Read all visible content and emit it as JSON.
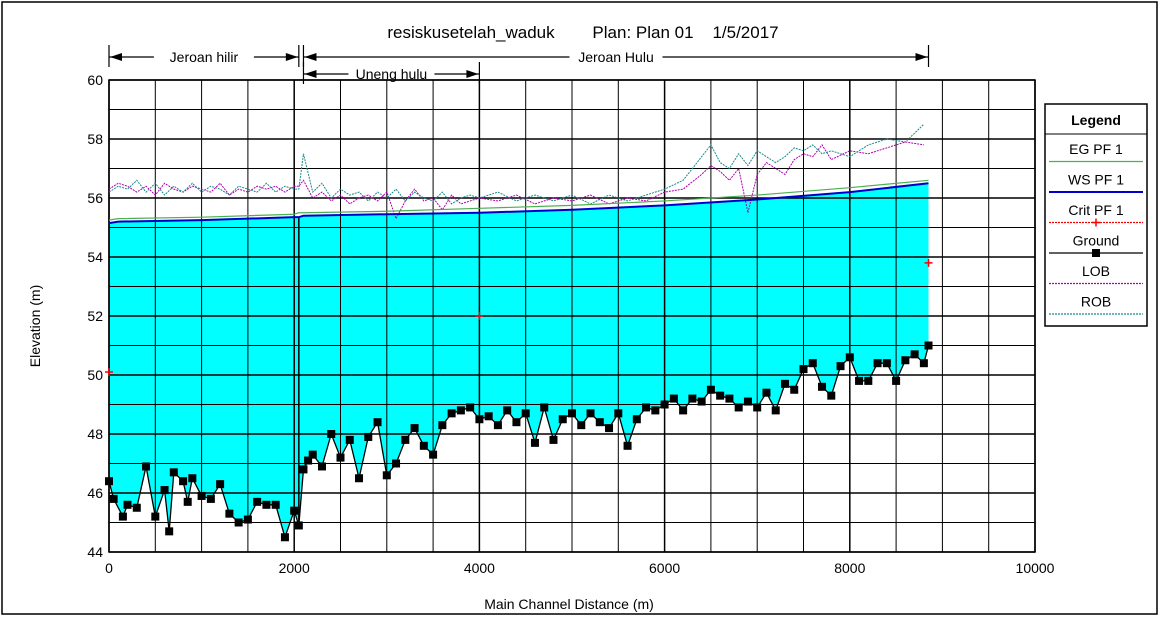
{
  "chart_data": {
    "type": "line",
    "title": "resiskusetelah_waduk        Plan: Plan 01    1/5/2017",
    "xlabel": "Main Channel Distance (m)",
    "ylabel": "Elevation (m)",
    "xlim": [
      0,
      10000
    ],
    "ylim": [
      44,
      60
    ],
    "x_ticks": [
      "0",
      "2000",
      "4000",
      "6000",
      "8000",
      "10000"
    ],
    "y_ticks": [
      "44",
      "46",
      "48",
      "50",
      "52",
      "54",
      "56",
      "58",
      "60"
    ],
    "grid": true,
    "legend_position": "right",
    "legend_title": "Legend",
    "reaches": [
      {
        "label": "Jeroan hilir",
        "from": 0,
        "to": 2050
      },
      {
        "label": "Uneng hulu",
        "from": 2100,
        "to": 4000
      },
      {
        "label": "Jeroan Hulu",
        "from": 2100,
        "to": 8850
      }
    ],
    "series": [
      {
        "name": "EG PF 1",
        "color": "#4caf50",
        "style": "solid",
        "x": [
          0,
          100,
          1000,
          2000,
          2050,
          2100,
          3000,
          4000,
          5000,
          6000,
          7000,
          8000,
          8850
        ],
        "values": [
          55.25,
          55.3,
          55.35,
          55.45,
          55.5,
          55.5,
          55.55,
          55.65,
          55.75,
          55.9,
          56.1,
          56.35,
          56.6
        ]
      },
      {
        "name": "WS PF 1",
        "color": "#0000cc",
        "style": "solid",
        "x": [
          0,
          100,
          1000,
          2000,
          2050,
          2100,
          3000,
          4000,
          5000,
          6000,
          7000,
          8000,
          8850
        ],
        "values": [
          55.15,
          55.2,
          55.25,
          55.35,
          55.35,
          55.4,
          55.45,
          55.5,
          55.6,
          55.75,
          55.95,
          56.2,
          56.5
        ]
      },
      {
        "name": "Crit PF 1",
        "color": "#ff0000",
        "style": "marker-plus",
        "x": [
          0,
          4000,
          8850
        ],
        "values": [
          50.1,
          52.0,
          53.8
        ]
      },
      {
        "name": "Ground",
        "color": "#000000",
        "style": "solid-square",
        "x": [
          0,
          50,
          150,
          200,
          300,
          400,
          500,
          600,
          650,
          700,
          800,
          850,
          900,
          1000,
          1100,
          1200,
          1300,
          1400,
          1500,
          1600,
          1700,
          1800,
          1900,
          2000,
          2050,
          2100,
          2150,
          2200,
          2300,
          2400,
          2500,
          2600,
          2700,
          2800,
          2900,
          3000,
          3100,
          3200,
          3300,
          3400,
          3500,
          3600,
          3700,
          3800,
          3900,
          4000,
          4100,
          4200,
          4300,
          4400,
          4500,
          4600,
          4700,
          4800,
          4900,
          5000,
          5100,
          5200,
          5300,
          5400,
          5500,
          5600,
          5700,
          5800,
          5900,
          6000,
          6100,
          6200,
          6300,
          6400,
          6500,
          6600,
          6700,
          6800,
          6900,
          7000,
          7100,
          7200,
          7300,
          7400,
          7500,
          7600,
          7700,
          7800,
          7900,
          8000,
          8100,
          8200,
          8300,
          8400,
          8500,
          8600,
          8700,
          8800,
          8850
        ],
        "values": [
          46.4,
          45.8,
          45.2,
          45.6,
          45.5,
          46.9,
          45.2,
          46.1,
          44.7,
          46.7,
          46.4,
          45.7,
          46.5,
          45.9,
          45.8,
          46.3,
          45.3,
          45.0,
          45.1,
          45.7,
          45.6,
          45.6,
          44.5,
          45.4,
          44.9,
          46.8,
          47.1,
          47.3,
          46.9,
          48.0,
          47.2,
          47.8,
          46.5,
          47.9,
          48.4,
          46.6,
          47.0,
          47.8,
          48.2,
          47.6,
          47.3,
          48.3,
          48.7,
          48.8,
          48.9,
          48.5,
          48.6,
          48.3,
          48.8,
          48.4,
          48.7,
          47.7,
          48.9,
          47.8,
          48.5,
          48.7,
          48.3,
          48.7,
          48.4,
          48.2,
          48.7,
          47.6,
          48.5,
          48.9,
          48.8,
          49.0,
          49.2,
          48.8,
          49.2,
          49.1,
          49.5,
          49.3,
          49.2,
          48.9,
          49.1,
          48.9,
          49.4,
          48.8,
          49.7,
          49.5,
          50.2,
          50.4,
          49.6,
          49.3,
          50.3,
          50.6,
          49.8,
          49.8,
          50.4,
          50.4,
          49.8,
          50.5,
          50.7,
          50.4,
          51.0
        ]
      },
      {
        "name": "LOB",
        "color": "#b000b0",
        "style": "dotted",
        "x": [
          0,
          100,
          200,
          300,
          400,
          500,
          600,
          700,
          800,
          900,
          1000,
          1100,
          1200,
          1300,
          1400,
          1500,
          1600,
          1700,
          1800,
          1900,
          2000,
          2050,
          2100,
          2200,
          2300,
          2400,
          2500,
          2600,
          2700,
          2800,
          2900,
          3000,
          3100,
          3200,
          3300,
          3400,
          3500,
          3600,
          3700,
          3800,
          3900,
          4000,
          4200,
          4400,
          4600,
          4800,
          5000,
          5200,
          5400,
          5600,
          5800,
          6000,
          6200,
          6400,
          6500,
          6600,
          6700,
          6800,
          6900,
          7000,
          7100,
          7200,
          7300,
          7400,
          7500,
          7600,
          7700,
          7800,
          8000,
          8200,
          8400,
          8600,
          8800
        ],
        "values": [
          56.3,
          56.5,
          56.4,
          56.2,
          56.4,
          56.1,
          56.5,
          56.3,
          56.2,
          56.4,
          56.3,
          56.2,
          56.5,
          56.1,
          56.3,
          56.2,
          56.4,
          56.3,
          56.4,
          56.2,
          56.4,
          56.4,
          56.6,
          56.0,
          56.2,
          55.9,
          56.1,
          55.8,
          56.0,
          56.1,
          55.9,
          56.2,
          55.3,
          55.9,
          56.3,
          55.9,
          56.0,
          55.6,
          56.1,
          55.8,
          55.9,
          56.0,
          55.9,
          56.1,
          55.8,
          56.0,
          55.9,
          56.1,
          55.8,
          56.0,
          55.9,
          56.2,
          56.3,
          56.8,
          57.1,
          56.9,
          56.6,
          57.0,
          55.5,
          56.8,
          57.2,
          57.0,
          56.8,
          57.3,
          57.5,
          57.4,
          57.8,
          57.3,
          57.6,
          57.5,
          57.7,
          57.9,
          57.8
        ]
      },
      {
        "name": "ROB",
        "color": "#1a8a8a",
        "style": "dotted",
        "x": [
          0,
          100,
          200,
          300,
          400,
          500,
          600,
          700,
          800,
          900,
          1000,
          1100,
          1200,
          1300,
          1400,
          1500,
          1600,
          1700,
          1800,
          1900,
          2000,
          2050,
          2100,
          2200,
          2300,
          2400,
          2500,
          2600,
          2700,
          2800,
          2900,
          3000,
          3100,
          3200,
          3300,
          3400,
          3500,
          3600,
          3700,
          3800,
          3900,
          4000,
          4200,
          4400,
          4600,
          4800,
          5000,
          5200,
          5400,
          5600,
          5800,
          6000,
          6200,
          6400,
          6500,
          6600,
          6700,
          6800,
          6900,
          7000,
          7100,
          7200,
          7300,
          7400,
          7500,
          7600,
          7700,
          7800,
          8000,
          8200,
          8400,
          8600,
          8800
        ],
        "values": [
          56.2,
          56.4,
          56.3,
          56.6,
          56.2,
          56.5,
          56.1,
          56.4,
          56.2,
          56.5,
          56.2,
          56.4,
          56.3,
          56.1,
          56.4,
          56.3,
          56.2,
          56.5,
          56.2,
          56.4,
          56.3,
          56.3,
          57.5,
          56.2,
          56.5,
          56.0,
          56.3,
          56.1,
          56.2,
          55.9,
          56.2,
          56.0,
          56.3,
          55.9,
          56.2,
          56.0,
          55.9,
          56.2,
          55.8,
          56.0,
          56.1,
          56.0,
          56.2,
          55.9,
          56.1,
          55.9,
          56.1,
          55.8,
          56.1,
          55.9,
          56.1,
          56.3,
          56.6,
          57.4,
          57.8,
          57.2,
          57.0,
          57.5,
          57.1,
          57.6,
          57.4,
          57.2,
          57.4,
          57.7,
          57.6,
          57.8,
          57.5,
          57.6,
          57.4,
          57.8,
          58.0,
          57.9,
          58.5
        ]
      }
    ]
  }
}
